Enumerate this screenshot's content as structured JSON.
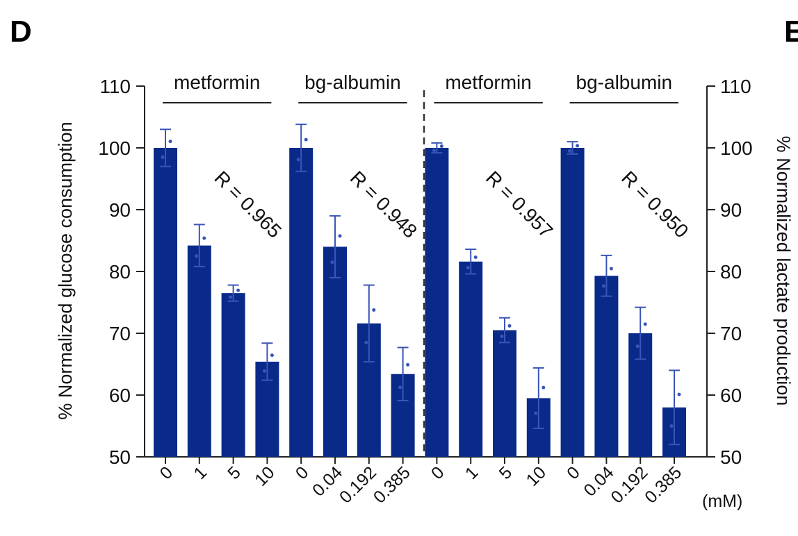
{
  "panel_letter": "D",
  "partial_next_letter": "E",
  "chart_data": {
    "type": "bar",
    "ylabel_left": "% Normalized glucose consumption",
    "ylabel_right": "% Normalized lactate production",
    "x_unit": "(mM)",
    "ylim": [
      50,
      110
    ],
    "y_ticks": [
      "50",
      "60",
      "70",
      "80",
      "90",
      "100",
      "110"
    ],
    "bar_color": "#0a2a8a",
    "groups": [
      {
        "name": "metformin",
        "panel": "glucose",
        "categories": [
          "0",
          "1",
          "5",
          "10"
        ],
        "values": [
          100,
          84.2,
          76.5,
          65.4
        ],
        "errors": [
          3,
          3.4,
          1.3,
          3.0
        ],
        "r_label": "R = 0.965"
      },
      {
        "name": "bg-albumin",
        "panel": "glucose",
        "categories": [
          "0",
          "0.04",
          "0.192",
          "0.385"
        ],
        "values": [
          100,
          84,
          71.6,
          63.4
        ],
        "errors": [
          3.8,
          5.0,
          6.2,
          4.3
        ],
        "r_label": "R = 0.948"
      },
      {
        "name": "metformin",
        "panel": "lactate",
        "categories": [
          "0",
          "1",
          "5",
          "10"
        ],
        "values": [
          100,
          81.6,
          70.5,
          59.5
        ],
        "errors": [
          0.8,
          2.0,
          2.0,
          4.9
        ],
        "r_label": "R = 0.957"
      },
      {
        "name": "bg-albumin",
        "panel": "lactate",
        "categories": [
          "0",
          "0.04",
          "0.192",
          "0.385"
        ],
        "values": [
          100,
          79.3,
          70,
          58
        ],
        "errors": [
          1.0,
          3.3,
          4.2,
          6.0
        ],
        "r_label": "R = 0.950"
      }
    ]
  }
}
